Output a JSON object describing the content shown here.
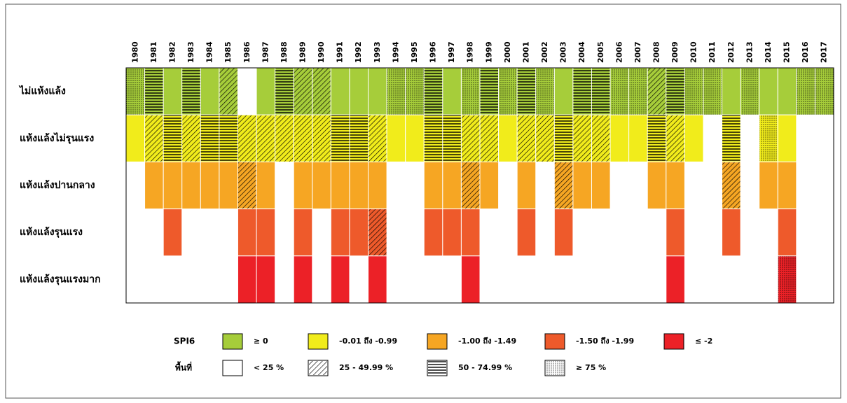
{
  "years": [
    "1980",
    "1981",
    "1982",
    "1983",
    "1984",
    "1985",
    "1986",
    "1987",
    "1988",
    "1989",
    "1990",
    "1991",
    "1992",
    "1993",
    "1994",
    "1995",
    "1996",
    "1997",
    "1998",
    "1999",
    "2000",
    "2001",
    "2002",
    "2003",
    "2004",
    "2005",
    "2006",
    "2007",
    "2008",
    "2009",
    "2010",
    "2011",
    "2012",
    "2013",
    "2014",
    "2015",
    "2016",
    "2017"
  ],
  "rows": [
    {
      "label": "ไม่แห้งแล้ง",
      "cells": [
        3,
        2,
        0,
        2,
        0,
        1,
        null,
        0,
        2,
        1,
        1,
        0,
        0,
        0,
        3,
        3,
        2,
        0,
        3,
        2,
        3,
        2,
        3,
        0,
        2,
        2,
        3,
        3,
        1,
        2,
        3,
        3,
        0,
        3,
        0,
        0,
        3,
        3
      ]
    },
    {
      "label": "แห้งแล้งไม่รุนแรง",
      "cells": [
        0,
        1,
        2,
        1,
        2,
        2,
        1,
        1,
        1,
        1,
        1,
        2,
        2,
        1,
        0,
        0,
        2,
        2,
        1,
        1,
        0,
        1,
        1,
        2,
        1,
        1,
        0,
        0,
        2,
        1,
        0,
        null,
        2,
        null,
        3,
        0,
        null,
        null
      ]
    },
    {
      "label": "แห้งแล้งปานกลาง",
      "cells": [
        null,
        0,
        0,
        0,
        0,
        0,
        1,
        0,
        null,
        0,
        0,
        0,
        0,
        0,
        null,
        null,
        0,
        0,
        1,
        0,
        null,
        0,
        null,
        1,
        0,
        0,
        null,
        null,
        0,
        0,
        null,
        null,
        1,
        null,
        0,
        0,
        null,
        null
      ]
    },
    {
      "label": "แห้งแล้งรุนแรง",
      "cells": [
        null,
        null,
        0,
        null,
        null,
        null,
        0,
        0,
        null,
        0,
        null,
        0,
        0,
        1,
        null,
        null,
        0,
        0,
        0,
        null,
        null,
        0,
        null,
        0,
        null,
        null,
        null,
        null,
        null,
        0,
        null,
        null,
        0,
        null,
        null,
        0,
        null,
        null
      ]
    },
    {
      "label": "แห้งแล้งรุนแรงมาก",
      "cells": [
        null,
        null,
        null,
        null,
        null,
        null,
        0,
        0,
        null,
        0,
        null,
        0,
        null,
        0,
        null,
        null,
        null,
        null,
        0,
        null,
        null,
        null,
        null,
        null,
        null,
        null,
        null,
        null,
        null,
        0,
        null,
        null,
        null,
        null,
        null,
        3,
        null,
        null
      ]
    }
  ],
  "legend": {
    "spi_label": "SPI6",
    "spi": [
      {
        "label": "≥ 0",
        "color": "#a6cd3a"
      },
      {
        "label": "-0.01 ถึง -0.99",
        "color": "#f1ec1b"
      },
      {
        "label": "-1.00 ถึง -1.49",
        "color": "#f6a623"
      },
      {
        "label": "-1.50 ถึง -1.99",
        "color": "#ee5a2b"
      },
      {
        "label": "≤ -2",
        "color": "#ec2127"
      }
    ],
    "area_label": "พื้นที่",
    "area": [
      {
        "label": "< 25 %"
      },
      {
        "label": "25 - 49.99 %"
      },
      {
        "label": "50 - 74.99 %"
      },
      {
        "label": "≥ 75 %"
      }
    ]
  }
}
